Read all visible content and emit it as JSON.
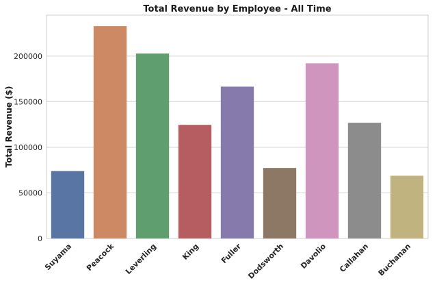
{
  "chart_data": {
    "type": "bar",
    "title": "Total Revenue by Employee - All Time",
    "xlabel": "",
    "ylabel": "Total Revenue ($)",
    "categories": [
      "Suyama",
      "Peacock",
      "Leverling",
      "King",
      "Fuller",
      "Dodsworth",
      "Davolio",
      "Callahan",
      "Buchanan"
    ],
    "values": [
      73900,
      232900,
      202800,
      124600,
      166500,
      77300,
      192100,
      126900,
      68800
    ],
    "colors": [
      "#5875a4",
      "#cc8963",
      "#5f9e6e",
      "#b55d60",
      "#857aab",
      "#8d7866",
      "#d095bf",
      "#8c8c8c",
      "#c1b37f"
    ],
    "ylim": [
      0,
      245000
    ],
    "yticks": [
      0,
      50000,
      100000,
      150000,
      200000
    ],
    "ytick_labels": [
      "0",
      "50000",
      "100000",
      "150000",
      "200000"
    ],
    "grid": "horizontal",
    "legend": "none"
  }
}
